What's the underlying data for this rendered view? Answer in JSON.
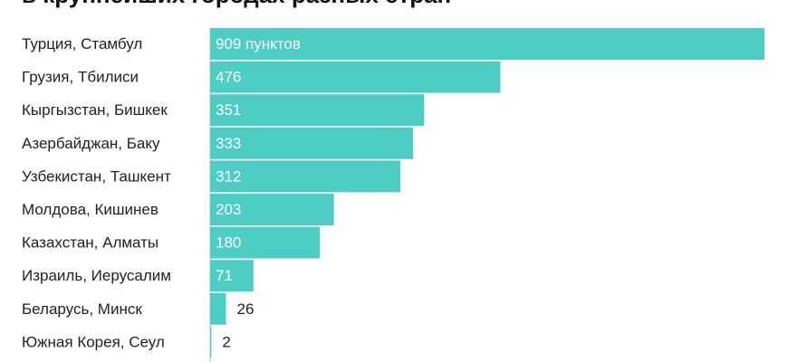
{
  "chart_data": {
    "type": "bar",
    "orientation": "horizontal",
    "title": "в крупнейших городах разных стран",
    "categories": [
      "Турция, Стамбул",
      "Грузия, Тбилиси",
      "Кыргызстан, Бишкек",
      "Азербайджан, Баку",
      "Узбекистан, Ташкент",
      "Молдова, Кишинев",
      "Казахстан, Алматы",
      "Израиль, Иерусалим",
      "Беларусь, Минск",
      "Южная Корея, Сеул"
    ],
    "values": [
      909,
      476,
      351,
      333,
      312,
      203,
      180,
      71,
      26,
      2
    ],
    "data_labels": [
      "909 пунктов",
      "476",
      "351",
      "333",
      "312",
      "203",
      "180",
      "71",
      "26",
      "2"
    ],
    "bar_color": "#4ecdc4",
    "axis_line_color": "#bfbfbf",
    "xlim": [
      0,
      909
    ],
    "grid": false,
    "legend": "none"
  }
}
